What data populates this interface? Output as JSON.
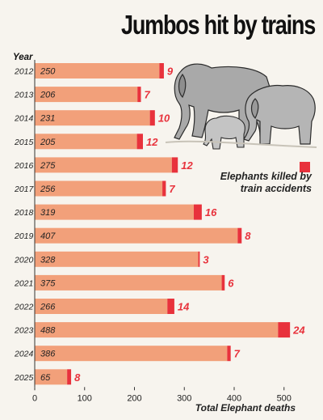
{
  "title": "Jumbos hit by trains",
  "colors": {
    "background": "#f7f4ee",
    "total_bar": "#f2a07a",
    "train_bar": "#e8323c",
    "train_label": "#e8323c"
  },
  "legend": {
    "label": "Elephants killed by train accidents"
  },
  "illustration": {
    "icon": "elephant-herd-icon"
  },
  "chart_data": {
    "type": "bar",
    "orientation": "horizontal",
    "stacked": true,
    "title": "Jumbos hit by trains",
    "ylabel": "Year",
    "xlabel": "Total Elephant deaths",
    "xlim": [
      0,
      550
    ],
    "xticks": [
      0,
      100,
      200,
      300,
      400,
      500
    ],
    "categories": [
      "2012",
      "2013",
      "2014",
      "2015",
      "2016",
      "2017",
      "2018",
      "2019",
      "2020",
      "2021",
      "2022",
      "2023",
      "2024",
      "2025"
    ],
    "series": [
      {
        "name": "Total Elephant deaths",
        "values": [
          250,
          206,
          231,
          205,
          275,
          256,
          319,
          407,
          328,
          375,
          266,
          488,
          386,
          65
        ]
      },
      {
        "name": "Elephants killed by train accidents",
        "values": [
          9,
          7,
          10,
          12,
          12,
          7,
          16,
          8,
          3,
          6,
          14,
          24,
          7,
          8
        ]
      }
    ],
    "grid": false,
    "legend_position": "right"
  }
}
